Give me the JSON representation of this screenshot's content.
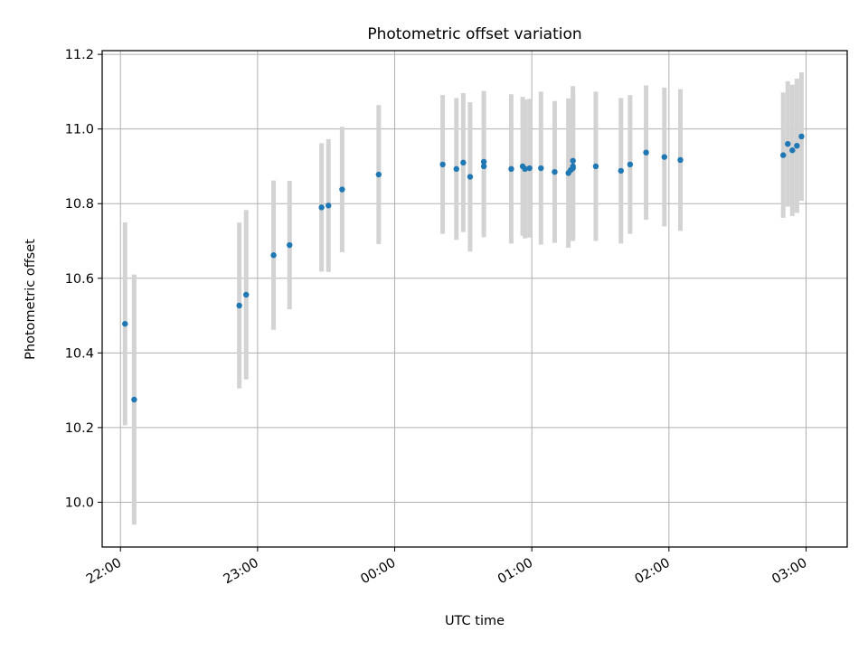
{
  "chart_data": {
    "type": "scatter",
    "title": "Photometric offset variation",
    "xlabel": "UTC time",
    "ylabel": "Photometric offset",
    "x_ticks": [
      "22:00",
      "23:00",
      "00:00",
      "01:00",
      "02:00",
      "03:00"
    ],
    "y_ticks": [
      "10.0",
      "10.2",
      "10.4",
      "10.6",
      "10.8",
      "11.0",
      "11.2"
    ],
    "xlim_minutes_from_2200": [
      -8,
      318
    ],
    "ylim": [
      9.88,
      11.21
    ],
    "grid": true,
    "marker_color": "#1f77b4",
    "errorbar_color": "#d3d3d3",
    "points": [
      {
        "x": "22:02",
        "y": 10.478,
        "err": 0.272
      },
      {
        "x": "22:06",
        "y": 10.275,
        "err": 0.335
      },
      {
        "x": "22:52",
        "y": 10.527,
        "err": 0.222
      },
      {
        "x": "22:55",
        "y": 10.556,
        "err": 0.227
      },
      {
        "x": "23:07",
        "y": 10.662,
        "err": 0.2
      },
      {
        "x": "23:14",
        "y": 10.689,
        "err": 0.172
      },
      {
        "x": "23:28",
        "y": 10.79,
        "err": 0.172
      },
      {
        "x": "23:31",
        "y": 10.795,
        "err": 0.178
      },
      {
        "x": "23:37",
        "y": 10.838,
        "err": 0.168
      },
      {
        "x": "23:53",
        "y": 10.878,
        "err": 0.186
      },
      {
        "x": "00:21",
        "y": 10.905,
        "err": 0.186
      },
      {
        "x": "00:27",
        "y": 10.893,
        "err": 0.19
      },
      {
        "x": "00:30",
        "y": 10.91,
        "err": 0.186
      },
      {
        "x": "00:33",
        "y": 10.872,
        "err": 0.2
      },
      {
        "x": "00:39",
        "y": 10.912,
        "err": 0.19
      },
      {
        "x": "00:39",
        "y": 10.9,
        "err": 0.19
      },
      {
        "x": "00:51",
        "y": 10.893,
        "err": 0.2
      },
      {
        "x": "00:56",
        "y": 10.9,
        "err": 0.186
      },
      {
        "x": "00:57",
        "y": 10.893,
        "err": 0.186
      },
      {
        "x": "00:59",
        "y": 10.895,
        "err": 0.186
      },
      {
        "x": "01:04",
        "y": 10.895,
        "err": 0.205
      },
      {
        "x": "01:10",
        "y": 10.885,
        "err": 0.19
      },
      {
        "x": "01:16",
        "y": 10.882,
        "err": 0.2
      },
      {
        "x": "01:17",
        "y": 10.89,
        "err": 0.19
      },
      {
        "x": "01:18",
        "y": 10.9,
        "err": 0.2
      },
      {
        "x": "01:18",
        "y": 10.915,
        "err": 0.2
      },
      {
        "x": "01:18",
        "y": 10.895,
        "err": 0.186
      },
      {
        "x": "01:28",
        "y": 10.9,
        "err": 0.2
      },
      {
        "x": "01:39",
        "y": 10.888,
        "err": 0.195
      },
      {
        "x": "01:43",
        "y": 10.905,
        "err": 0.186
      },
      {
        "x": "01:50",
        "y": 10.937,
        "err": 0.18
      },
      {
        "x": "01:58",
        "y": 10.925,
        "err": 0.186
      },
      {
        "x": "02:05",
        "y": 10.917,
        "err": 0.19
      },
      {
        "x": "02:50",
        "y": 10.93,
        "err": 0.168
      },
      {
        "x": "02:52",
        "y": 10.96,
        "err": 0.168
      },
      {
        "x": "02:54",
        "y": 10.943,
        "err": 0.176
      },
      {
        "x": "02:56",
        "y": 10.955,
        "err": 0.18
      },
      {
        "x": "02:58",
        "y": 10.98,
        "err": 0.172
      }
    ]
  }
}
